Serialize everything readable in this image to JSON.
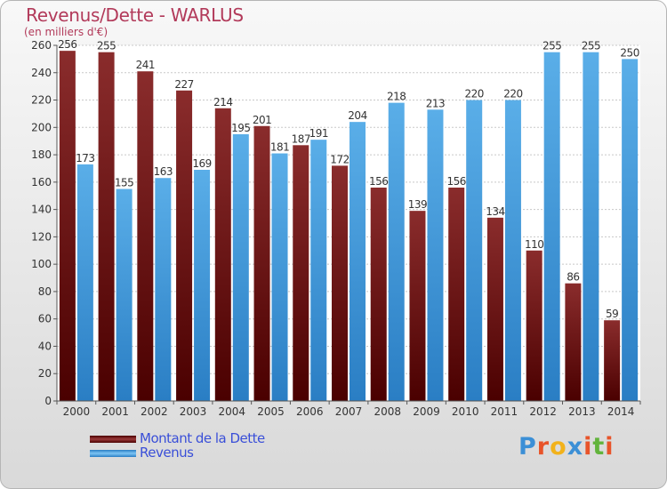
{
  "title": "Revenus/Dette - WARLUS",
  "subtitle": "(en milliers d'€)",
  "colors": {
    "debt": "#7a1a1a",
    "revenue": "#4aa0e0",
    "title": "#b23a5a",
    "legend_text": "#3a4fd8"
  },
  "logo": {
    "letters": [
      "P",
      "r",
      "o",
      "x",
      "i",
      "t",
      "i"
    ],
    "colors": [
      "#3b8fd6",
      "#e8542a",
      "#f2b21b",
      "#3b8fd6",
      "#e8542a",
      "#62b43c",
      "#e8542a"
    ]
  },
  "legend": [
    {
      "label": "Montant de la Dette",
      "series": "debt"
    },
    {
      "label": "Revenus",
      "series": "revenue"
    }
  ],
  "chart_data": {
    "type": "bar",
    "title": "Revenus/Dette - WARLUS",
    "subtitle": "(en milliers d'€)",
    "categories": [
      "2000",
      "2001",
      "2002",
      "2003",
      "2004",
      "2005",
      "2006",
      "2007",
      "2008",
      "2009",
      "2010",
      "2011",
      "2012",
      "2013",
      "2014"
    ],
    "series": [
      {
        "name": "Montant de la Dette",
        "key": "debt",
        "values": [
          256,
          255,
          241,
          227,
          214,
          201,
          187,
          172,
          156,
          139,
          156,
          134,
          110,
          86,
          59
        ]
      },
      {
        "name": "Revenus",
        "key": "revenue",
        "values": [
          173,
          155,
          163,
          169,
          195,
          181,
          191,
          204,
          218,
          213,
          220,
          220,
          255,
          255,
          250
        ]
      }
    ],
    "ylim": [
      0,
      260
    ],
    "yticks": [
      0,
      20,
      40,
      60,
      80,
      100,
      120,
      140,
      160,
      180,
      200,
      220,
      240,
      260
    ],
    "grid": true,
    "legend_position": "bottom-left"
  }
}
